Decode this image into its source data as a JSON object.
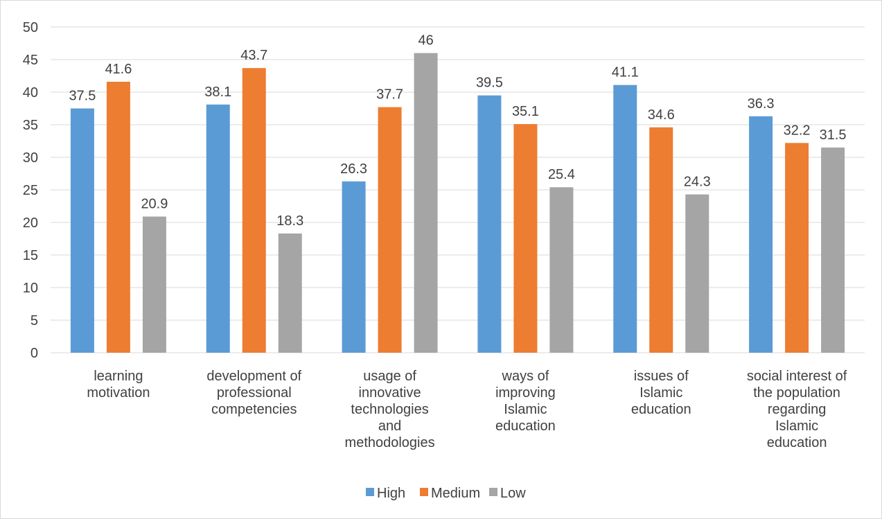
{
  "chart_data": {
    "type": "bar",
    "title": "",
    "xlabel": "",
    "ylabel": "",
    "ylim": [
      0,
      50
    ],
    "y_ticks": [
      0,
      5,
      10,
      15,
      20,
      25,
      30,
      35,
      40,
      45,
      50
    ],
    "grid": true,
    "legend_position": "bottom",
    "categories": [
      [
        "learning",
        "motivation"
      ],
      [
        "development of",
        "professional",
        "competencies"
      ],
      [
        "usage of",
        "innovative",
        "technologies",
        "and",
        "methodologies"
      ],
      [
        "ways of",
        "improving",
        "Islamic",
        "education"
      ],
      [
        "issues of",
        "Islamic",
        "education"
      ],
      [
        "social interest of",
        "the population",
        "regarding",
        "Islamic",
        "education"
      ]
    ],
    "series": [
      {
        "name": "High",
        "color": "#5b9bd5",
        "values": [
          37.5,
          38.1,
          26.3,
          39.5,
          41.1,
          36.3
        ]
      },
      {
        "name": "Medium",
        "color": "#ed7d31",
        "values": [
          41.6,
          43.7,
          37.7,
          35.1,
          34.6,
          32.2
        ]
      },
      {
        "name": "Low",
        "color": "#a5a5a5",
        "values": [
          20.9,
          18.3,
          46,
          25.4,
          24.3,
          31.5
        ]
      }
    ]
  }
}
